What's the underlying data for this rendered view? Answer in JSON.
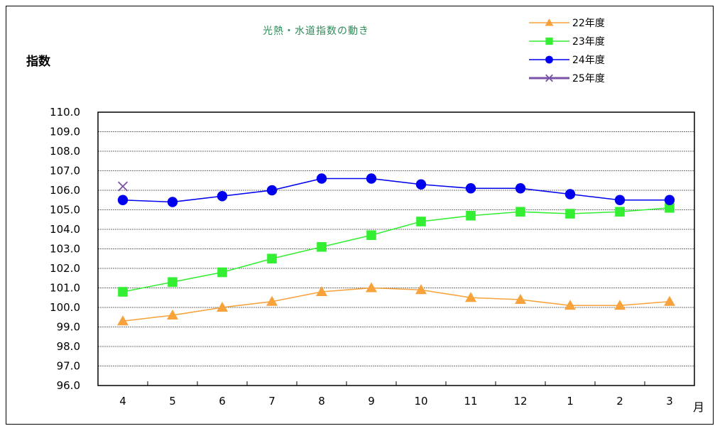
{
  "chart_data": {
    "type": "line",
    "title": "光熱・水道指数の動き",
    "ylabel": "指数",
    "xlabel": "月",
    "categories": [
      "4",
      "5",
      "6",
      "7",
      "8",
      "9",
      "10",
      "11",
      "12",
      "1",
      "2",
      "3"
    ],
    "ylim": [
      96.0,
      110.0
    ],
    "yticks": [
      "110.0",
      "109.0",
      "108.0",
      "107.0",
      "106.0",
      "105.0",
      "104.0",
      "103.0",
      "102.0",
      "101.0",
      "100.0",
      "99.0",
      "98.0",
      "97.0",
      "96.0"
    ],
    "grid": true,
    "legend_position": "top-right",
    "series": [
      {
        "name": "22年度",
        "color": "#f7a23a",
        "marker": "triangle",
        "values": [
          99.3,
          99.6,
          100.0,
          100.3,
          100.8,
          101.0,
          100.9,
          100.5,
          100.4,
          100.1,
          100.1,
          100.3
        ]
      },
      {
        "name": "23年度",
        "color": "#33ee33",
        "marker": "square",
        "values": [
          100.8,
          101.3,
          101.8,
          102.5,
          103.1,
          103.7,
          104.4,
          104.7,
          104.9,
          104.8,
          104.9,
          105.1
        ]
      },
      {
        "name": "24年度",
        "color": "#0000ee",
        "marker": "circle",
        "values": [
          105.5,
          105.4,
          105.7,
          106.0,
          106.6,
          106.6,
          106.3,
          106.1,
          106.1,
          105.8,
          105.5,
          105.5
        ]
      },
      {
        "name": "25年度",
        "color": "#7a52a8",
        "marker": "x",
        "values": [
          106.2,
          null,
          null,
          null,
          null,
          null,
          null,
          null,
          null,
          null,
          null,
          null
        ]
      }
    ]
  }
}
